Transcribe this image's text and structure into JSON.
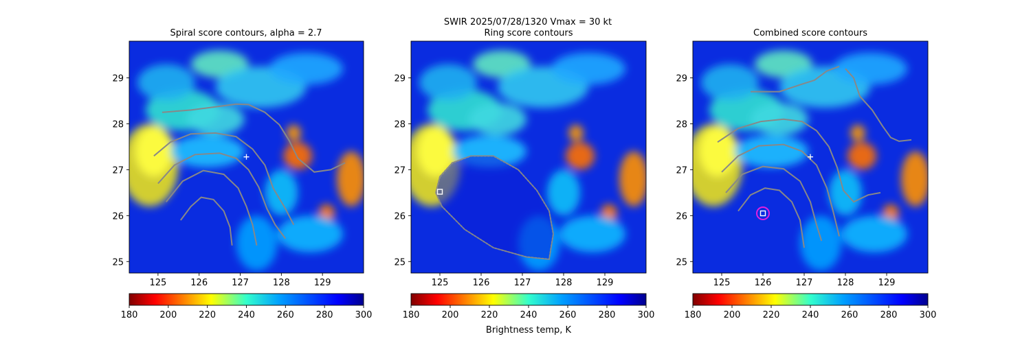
{
  "figure": {
    "suptitle_line1": "SWIR  2025/07/28/1320    Vmax = 30 kt",
    "colorbar_label": "Brightness temp, K"
  },
  "panels": [
    {
      "title": "Spiral score contours, alpha =  2.7"
    },
    {
      "title": "Ring score contours"
    },
    {
      "title": "Combined score contours"
    }
  ],
  "chart_data": [
    {
      "type": "heatmap",
      "title": "Spiral score contours, alpha =  2.7",
      "xlim": [
        124.3,
        130.0
      ],
      "ylim": [
        24.75,
        29.8
      ],
      "xticks": [
        "125",
        "126",
        "127",
        "128",
        "129"
      ],
      "yticks": [
        "25",
        "26",
        "27",
        "28",
        "29"
      ],
      "center_marker": {
        "lon": 127.15,
        "lat": 27.28,
        "symbol": "plus"
      },
      "contour_lines": [
        [
          [
            125.1,
            28.25
          ],
          [
            125.8,
            28.3
          ],
          [
            126.4,
            28.37
          ],
          [
            126.9,
            28.43
          ],
          [
            127.2,
            28.42
          ],
          [
            127.6,
            28.25
          ],
          [
            127.95,
            27.98
          ],
          [
            128.2,
            27.62
          ],
          [
            128.4,
            27.25
          ],
          [
            128.8,
            26.95
          ],
          [
            129.2,
            27.0
          ],
          [
            129.55,
            27.15
          ]
        ],
        [
          [
            124.9,
            27.3
          ],
          [
            125.3,
            27.6
          ],
          [
            125.8,
            27.78
          ],
          [
            126.4,
            27.8
          ],
          [
            126.9,
            27.72
          ],
          [
            127.3,
            27.45
          ],
          [
            127.6,
            27.1
          ],
          [
            127.8,
            26.6
          ],
          [
            128.1,
            26.15
          ],
          [
            128.3,
            25.8
          ]
        ],
        [
          [
            125.0,
            26.7
          ],
          [
            125.4,
            27.1
          ],
          [
            125.9,
            27.33
          ],
          [
            126.5,
            27.36
          ],
          [
            126.9,
            27.25
          ],
          [
            127.2,
            27.0
          ],
          [
            127.45,
            26.62
          ],
          [
            127.65,
            26.15
          ],
          [
            127.85,
            25.8
          ],
          [
            128.1,
            25.5
          ]
        ],
        [
          [
            125.2,
            26.3
          ],
          [
            125.6,
            26.75
          ],
          [
            126.1,
            26.98
          ],
          [
            126.6,
            26.9
          ],
          [
            126.95,
            26.6
          ],
          [
            127.15,
            26.2
          ],
          [
            127.3,
            25.8
          ],
          [
            127.4,
            25.35
          ]
        ],
        [
          [
            125.55,
            25.9
          ],
          [
            125.8,
            26.2
          ],
          [
            126.05,
            26.4
          ],
          [
            126.35,
            26.35
          ],
          [
            126.6,
            26.1
          ],
          [
            126.75,
            25.75
          ],
          [
            126.8,
            25.35
          ]
        ]
      ]
    },
    {
      "type": "heatmap",
      "title": "Ring score contours",
      "xlim": [
        124.3,
        130.0
      ],
      "ylim": [
        24.75,
        29.8
      ],
      "xticks": [
        "125",
        "126",
        "127",
        "128",
        "129"
      ],
      "yticks": [
        "25",
        "26",
        "27",
        "28",
        "29"
      ],
      "center_marker": {
        "lon": 125.0,
        "lat": 26.52,
        "symbol": "square"
      },
      "ring_region": [
        [
          125.0,
          26.85
        ],
        [
          125.3,
          27.15
        ],
        [
          125.75,
          27.3
        ],
        [
          126.3,
          27.3
        ],
        [
          126.9,
          27.0
        ],
        [
          127.35,
          26.55
        ],
        [
          127.65,
          26.1
        ],
        [
          127.75,
          25.6
        ],
        [
          127.65,
          25.05
        ],
        [
          127.1,
          25.1
        ],
        [
          126.3,
          25.3
        ],
        [
          125.6,
          25.7
        ],
        [
          125.05,
          26.2
        ],
        [
          124.9,
          26.5
        ]
      ]
    },
    {
      "type": "heatmap",
      "title": "Combined score contours",
      "xlim": [
        124.3,
        130.0
      ],
      "ylim": [
        24.75,
        29.8
      ],
      "xticks": [
        "125",
        "126",
        "127",
        "128",
        "129"
      ],
      "yticks": [
        "25",
        "26",
        "27",
        "28",
        "29"
      ],
      "center_marker": {
        "lon": 127.15,
        "lat": 27.28,
        "symbol": "plus"
      },
      "best_center": {
        "lon": 126.0,
        "lat": 26.05
      },
      "contour_lines": [
        [
          [
            125.7,
            28.7
          ],
          [
            126.4,
            28.7
          ],
          [
            126.9,
            28.85
          ],
          [
            127.25,
            28.95
          ],
          [
            127.55,
            29.15
          ],
          [
            127.85,
            29.25
          ]
        ],
        [
          [
            128.0,
            29.2
          ],
          [
            128.2,
            29.0
          ],
          [
            128.35,
            28.6
          ],
          [
            128.65,
            28.3
          ],
          [
            128.9,
            27.95
          ],
          [
            129.1,
            27.7
          ],
          [
            129.3,
            27.62
          ],
          [
            129.6,
            27.65
          ]
        ],
        [
          [
            124.9,
            27.6
          ],
          [
            125.4,
            27.9
          ],
          [
            125.95,
            28.05
          ],
          [
            126.5,
            28.1
          ],
          [
            126.95,
            28.05
          ],
          [
            127.3,
            27.85
          ],
          [
            127.6,
            27.5
          ],
          [
            127.8,
            27.05
          ],
          [
            127.95,
            26.55
          ],
          [
            128.2,
            26.3
          ],
          [
            128.55,
            26.45
          ],
          [
            128.85,
            26.5
          ]
        ],
        [
          [
            125.0,
            26.95
          ],
          [
            125.4,
            27.3
          ],
          [
            125.9,
            27.52
          ],
          [
            126.5,
            27.55
          ],
          [
            126.95,
            27.4
          ],
          [
            127.3,
            27.1
          ],
          [
            127.55,
            26.6
          ],
          [
            127.7,
            26.1
          ],
          [
            127.85,
            25.55
          ]
        ],
        [
          [
            125.1,
            26.5
          ],
          [
            125.5,
            26.9
          ],
          [
            126.0,
            27.07
          ],
          [
            126.5,
            27.02
          ],
          [
            126.9,
            26.75
          ],
          [
            127.15,
            26.3
          ],
          [
            127.3,
            25.8
          ],
          [
            127.42,
            25.45
          ]
        ],
        [
          [
            125.4,
            26.1
          ],
          [
            125.7,
            26.45
          ],
          [
            126.05,
            26.6
          ],
          [
            126.4,
            26.55
          ],
          [
            126.7,
            26.3
          ],
          [
            126.9,
            25.9
          ],
          [
            127.0,
            25.3
          ]
        ]
      ]
    }
  ],
  "colorbar": {
    "min": 180,
    "max": 300,
    "ticks": [
      "180",
      "200",
      "220",
      "240",
      "260",
      "280",
      "300"
    ],
    "colormap": "jet_r"
  },
  "colors": {
    "contour": "#888888",
    "marker": "#ffffff",
    "best_center_circle": "#e020e0"
  }
}
